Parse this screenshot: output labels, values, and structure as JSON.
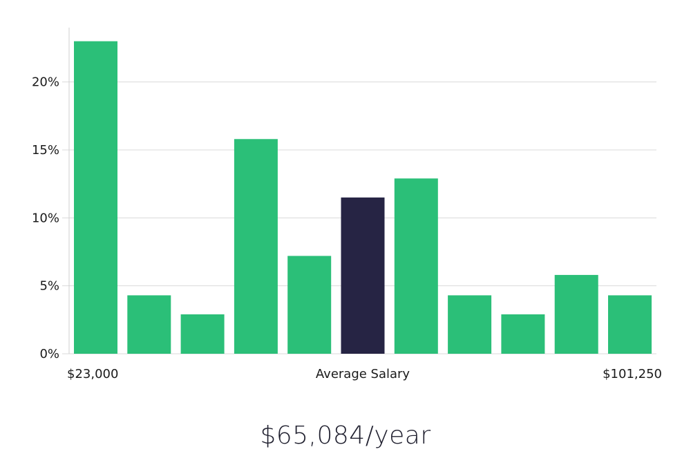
{
  "chart_data": {
    "type": "bar",
    "values": [
      23.0,
      4.3,
      2.9,
      15.8,
      7.2,
      11.5,
      12.9,
      4.3,
      2.9,
      5.8,
      4.3
    ],
    "highlight_index": 5,
    "ylim": [
      0,
      24
    ],
    "yticks": [
      0,
      5,
      10,
      15,
      20
    ],
    "ytick_labels": [
      "0%",
      "5%",
      "10%",
      "15%",
      "20%"
    ],
    "xlabel_left": "$23,000",
    "xlabel_center": "Average Salary",
    "xlabel_right": "$101,250",
    "grid": true,
    "colors": {
      "bar": "#2bbf78",
      "highlight": "#262444",
      "grid": "#d9d9d9",
      "axis": "#cfcfcf"
    }
  },
  "average_salary": "$65,084/year"
}
